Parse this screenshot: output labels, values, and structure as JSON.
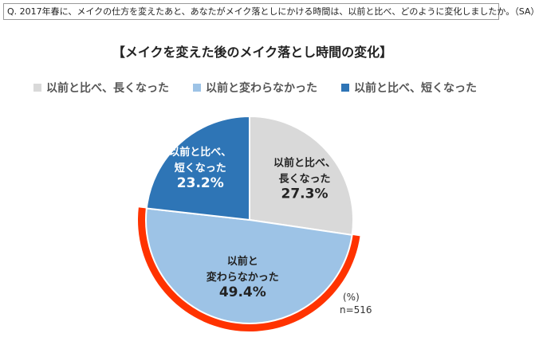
{
  "question": "Q. 2017年春に、メイクの仕方を変えたあと、あなたがメイク落としにかける時間は、以前と比べ、どのように変化しましたか。（SA）",
  "title": "【メイクを変えた後のメイク落とし時間の変化】",
  "colors": {
    "longer": "#d9d9d9",
    "same": "#9dc3e6",
    "shorter": "#2e75b6",
    "highlight": "#ff3300"
  },
  "chart_data": {
    "type": "pie",
    "unit": "(%)",
    "n_label": "n=516",
    "slices": [
      {
        "key": "longer",
        "legend": "以前と比べ、長くなった",
        "label_lines": [
          "以前と比べ、",
          "長くなった"
        ],
        "value": 27.3,
        "value_label": "27.3%"
      },
      {
        "key": "same",
        "legend": "以前と変わらなかった",
        "label_lines": [
          "以前と",
          "変わらなかった"
        ],
        "value": 49.4,
        "value_label": "49.4%"
      },
      {
        "key": "shorter",
        "legend": "以前と比べ、短くなった",
        "label_lines": [
          "以前と比べ、",
          "短くなった"
        ],
        "value": 23.2,
        "value_label": "23.2%"
      }
    ],
    "highlighted": "same"
  }
}
